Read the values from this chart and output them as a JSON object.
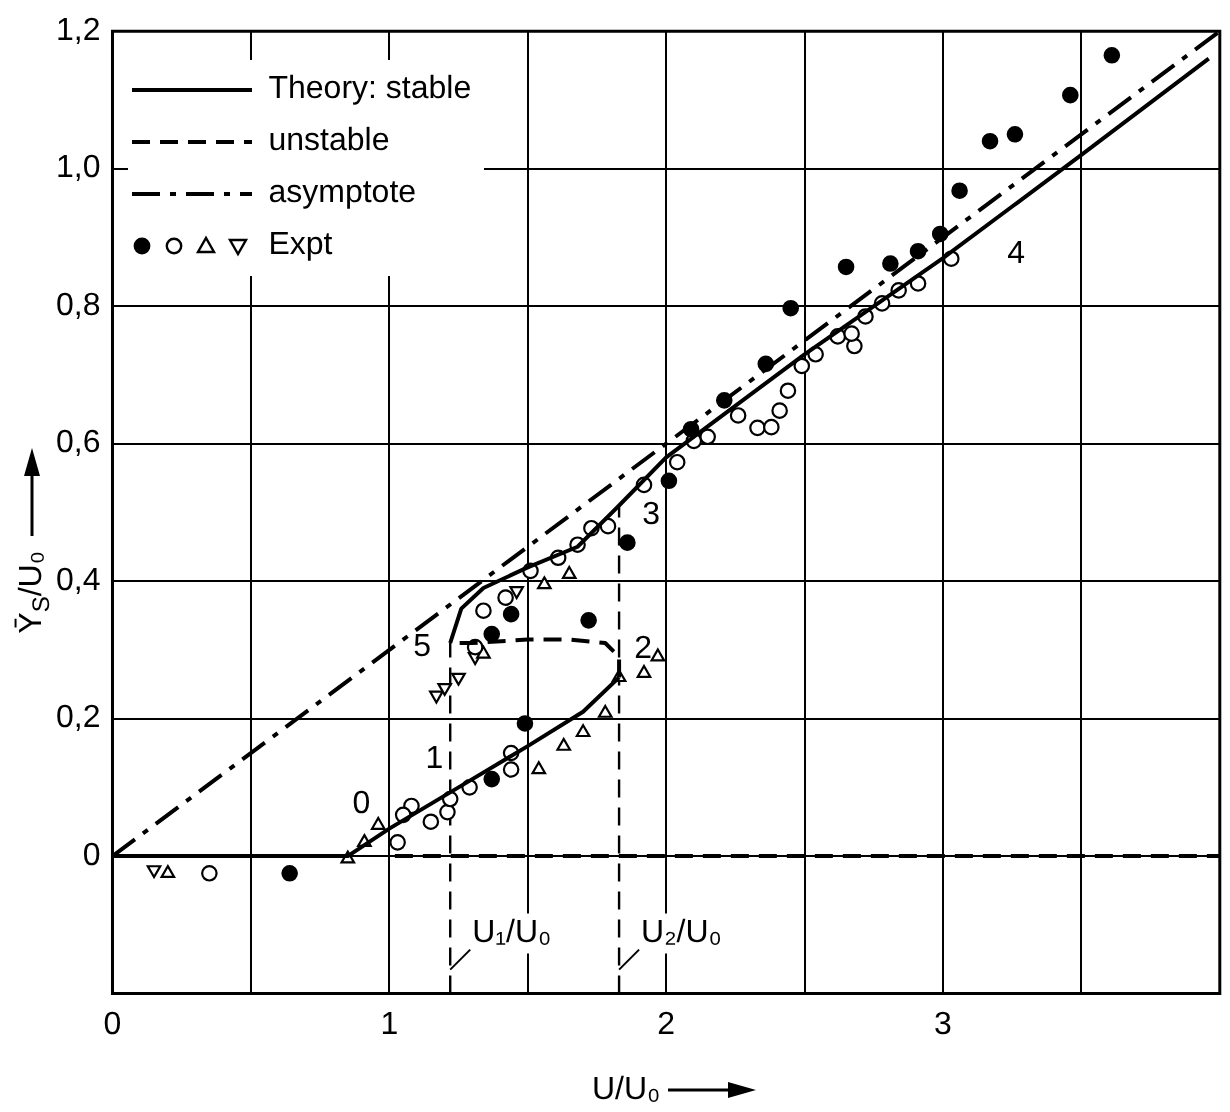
{
  "chart_data": {
    "type": "line",
    "xlabel": "U/U₀",
    "ylabel": "Ȳ$_{S}$/U₀",
    "xlim": [
      0,
      4
    ],
    "ylim": [
      -0.2,
      1.2
    ],
    "xticks": [
      0,
      {
        "value": 0.5,
        "label": null
      },
      1,
      {
        "value": 1.5,
        "label": null
      },
      2,
      {
        "value": 2.5,
        "label": null
      },
      3,
      {
        "value": 3.5,
        "label": null
      }
    ],
    "yticks": [
      0,
      {
        "value": 0.2,
        "label": "0,2"
      },
      {
        "value": 0.4,
        "label": "0,4"
      },
      {
        "value": 0.6,
        "label": "0,6"
      },
      {
        "value": 0.8,
        "label": "0,8"
      },
      {
        "value": 1.0,
        "label": "1,0"
      },
      {
        "value": 1.2,
        "label": "1,2"
      }
    ],
    "grid": true,
    "legend": "top left",
    "series": [
      {
        "name": "Theory: stable",
        "line_style": "solid",
        "color": "#000000",
        "x": [
          0,
          0.85,
          1.0,
          1.25,
          1.5,
          1.7,
          1.83,
          null,
          1.22,
          1.26,
          1.34,
          1.5,
          1.68,
          1.83,
          2.0,
          2.5,
          3.0,
          3.25,
          3.5,
          3.96
        ],
        "values": [
          0,
          0,
          0.04,
          0.1,
          0.16,
          0.21,
          0.26,
          null,
          0.31,
          0.36,
          0.39,
          0.42,
          0.45,
          0.51,
          0.58,
          0.73,
          0.87,
          0.945,
          1.02,
          1.16
        ]
      },
      {
        "name": "unstable",
        "line_style": "dashed",
        "color": "#000000",
        "x": [
          1.02,
          4,
          null,
          1.83,
          1.83,
          1.78,
          1.65,
          1.5,
          1.3,
          1.22
        ],
        "values": [
          0,
          0,
          null,
          0.26,
          0.29,
          0.31,
          0.315,
          0.315,
          0.31,
          0.31
        ]
      },
      {
        "name": "asymptote",
        "line_style": "dashdot",
        "color": "#000000",
        "x": [
          0,
          4
        ],
        "values": [
          0,
          1.2
        ]
      },
      {
        "type": "scatter",
        "marker": "circle",
        "color": "#000000",
        "x": [
          3.61,
          3.46,
          3.26,
          3.17,
          3.06,
          2.99,
          2.91,
          2.81,
          2.65,
          2.45,
          2.36,
          2.21,
          2.09,
          2.01,
          1.86,
          0.64,
          1.49,
          1.72,
          1.37,
          1.44,
          1.37
        ],
        "values": [
          1.165,
          1.107,
          1.05,
          1.04,
          0.968,
          0.905,
          0.88,
          0.862,
          0.857,
          0.797,
          0.716,
          0.663,
          0.621,
          0.546,
          0.456,
          -0.025,
          0.193,
          0.343,
          0.112,
          0.352,
          0.323
        ]
      },
      {
        "type": "scatter",
        "marker": "circle_open",
        "color": "#000000",
        "x": [
          0.35,
          1.03,
          1.15,
          1.21,
          1.22,
          1.29,
          1.44,
          1.44,
          1.08,
          1.05,
          1.31,
          1.34,
          1.42,
          1.51,
          1.61,
          1.68,
          1.73,
          1.79,
          1.92,
          2.04,
          2.1,
          2.15,
          2.26,
          2.33,
          2.38,
          2.41,
          2.44,
          2.49,
          2.54,
          2.62,
          2.68,
          2.67,
          2.72,
          2.78,
          2.84,
          2.91,
          3.03
        ],
        "values": [
          -0.025,
          0.02,
          0.05,
          0.064,
          0.083,
          0.1,
          0.126,
          0.15,
          0.073,
          0.06,
          0.304,
          0.357,
          0.376,
          0.415,
          0.434,
          0.453,
          0.477,
          0.48,
          0.54,
          0.573,
          0.604,
          0.61,
          0.641,
          0.623,
          0.624,
          0.648,
          0.677,
          0.713,
          0.73,
          0.756,
          0.742,
          0.76,
          0.785,
          0.804,
          0.823,
          0.833,
          0.869
        ]
      },
      {
        "type": "scatter",
        "marker": "triangle",
        "color": "#000000",
        "x": [
          0.2,
          0.85,
          0.91,
          0.96,
          1.1,
          1.54,
          1.63,
          1.7,
          1.78,
          1.97,
          1.92,
          1.83,
          1.34,
          1.56,
          1.65
        ],
        "values": [
          -0.025,
          -0.004,
          0.02,
          0.045,
          null,
          0.126,
          0.16,
          0.18,
          0.208,
          0.29,
          0.266,
          0.26,
          0.294,
          0.395,
          0.41
        ]
      },
      {
        "name": "Expt",
        "type": "scatter",
        "marker": "triangle_down",
        "color": "#000000",
        "x": [
          0.15,
          1.17,
          1.2,
          1.25,
          1.31,
          1.46
        ],
        "values": [
          -0.02,
          0.234,
          0.245,
          0.26,
          0.29,
          0.386
        ]
      }
    ],
    "ref_lines": [
      {
        "axis": "x",
        "value": 1.22,
        "label": "U₁/U₀",
        "line_style": "dashed"
      },
      {
        "axis": "x",
        "value": 1.83,
        "label": "U₂/U₀",
        "line_style": "dashed"
      }
    ],
    "annotations": [
      {
        "text": "0",
        "x": 1.0,
        "y": 0.04
      },
      {
        "text": "1",
        "x": 1.25,
        "y": 0.1
      },
      {
        "text": "2",
        "x": 1.83,
        "y": 0.26
      },
      {
        "text": "3",
        "x": 1.83,
        "y": 0.51
      },
      {
        "text": "4",
        "x": 3.25,
        "y": 0.945
      },
      {
        "text": "5",
        "x": 1.22,
        "y": 0.31
      }
    ]
  }
}
